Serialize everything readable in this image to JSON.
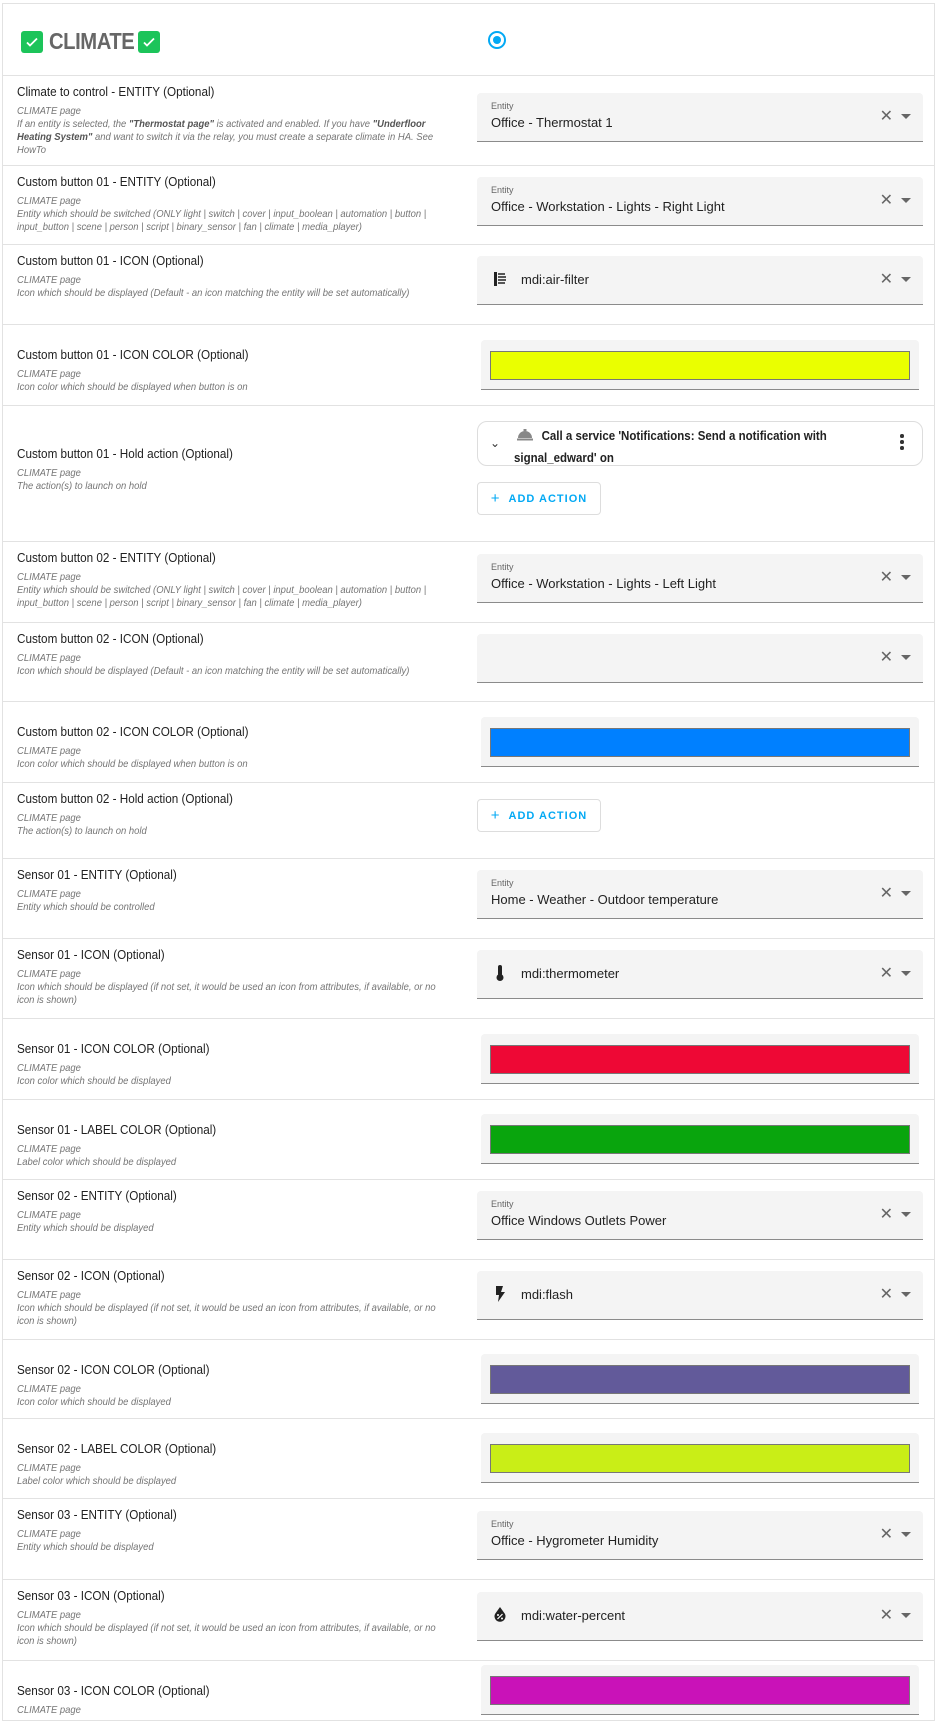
{
  "header": {
    "title": "CLIMATE",
    "checkbox_color": "#1cc45a",
    "radio_selected": true
  },
  "rows": [
    {
      "type": "entity",
      "title": "Climate to control - ENTITY (Optional)",
      "page": "CLIMATE page",
      "desc_html": "If an entity is selected, the <b>\"Thermostat page\"</b> is activated and enabled. If you have <b>\"Underfloor Heating System\"</b> and want to switch it via the relay, you must create a separate climate in HA. See HowTo",
      "label": "Entity",
      "value": "Office - Thermostat 1"
    },
    {
      "type": "entity",
      "title": "Custom button 01 - ENTITY (Optional)",
      "page": "CLIMATE page",
      "desc": "Entity which should be switched (ONLY light | switch | cover | input_boolean | automation | button | input_button | scene | person | script | binary_sensor | fan | climate | media_player)",
      "label": "Entity",
      "value": "Office - Workstation - Lights - Right Light"
    },
    {
      "type": "icon",
      "title": "Custom button 01 - ICON (Optional)",
      "page": "CLIMATE page",
      "desc": "Icon which should be displayed (Default - an icon matching the entity will be set automatically)",
      "value": "mdi:air-filter",
      "icon": "air-filter"
    },
    {
      "type": "color",
      "title": "Custom button 01 - ICON COLOR (Optional)",
      "page": "CLIMATE page",
      "desc": "Icon color which should be displayed when button is on",
      "color": "#eaff00"
    },
    {
      "type": "action",
      "title": "Custom button 01 - Hold action (Optional)",
      "page": "CLIMATE page",
      "desc": "The action(s) to launch on hold",
      "action_text": "Call a service 'Notifications: Send a notification with signal_edward' on",
      "add_label": "ADD ACTION"
    },
    {
      "type": "entity",
      "title": "Custom button 02 - ENTITY (Optional)",
      "page": "CLIMATE page",
      "desc": "Entity which should be switched (ONLY light | switch | cover | input_boolean | automation | button | input_button | scene | person | script | binary_sensor | fan | climate | media_player)",
      "label": "Entity",
      "value": "Office - Workstation - Lights - Left Light"
    },
    {
      "type": "icon",
      "title": "Custom button 02 - ICON (Optional)",
      "page": "CLIMATE page",
      "desc": "Icon which should be displayed (Default - an icon matching the entity will be set automatically)",
      "value": "",
      "icon": ""
    },
    {
      "type": "color",
      "title": "Custom button 02 - ICON COLOR (Optional)",
      "page": "CLIMATE page",
      "desc": "Icon color which should be displayed when button is on",
      "color": "#0080ff"
    },
    {
      "type": "addonly",
      "title": "Custom button 02 - Hold action (Optional)",
      "page": "CLIMATE page",
      "desc": "The action(s) to launch on hold",
      "add_label": "ADD ACTION"
    },
    {
      "type": "entity",
      "title": "Sensor 01 - ENTITY (Optional)",
      "page": "CLIMATE page",
      "desc": "Entity which should be controlled",
      "label": "Entity",
      "value": "Home - Weather - Outdoor temperature"
    },
    {
      "type": "icon",
      "title": "Sensor 01 - ICON (Optional)",
      "page": "CLIMATE page",
      "desc": "Icon which should be displayed (if not set, it would be used an icon from attributes, if available, or no icon is shown)",
      "value": "mdi:thermometer",
      "icon": "thermometer"
    },
    {
      "type": "color",
      "title": "Sensor 01 - ICON COLOR (Optional)",
      "page": "CLIMATE page",
      "desc": "Icon color which should be displayed",
      "color": "#ee0835"
    },
    {
      "type": "color",
      "title": "Sensor 01 - LABEL COLOR (Optional)",
      "page": "CLIMATE page",
      "desc": "Label color which should be displayed",
      "color": "#09a50d"
    },
    {
      "type": "entity",
      "title": "Sensor 02 - ENTITY (Optional)",
      "page": "CLIMATE page",
      "desc": "Entity which should be displayed",
      "label": "Entity",
      "value": "Office Windows Outlets Power"
    },
    {
      "type": "icon",
      "title": "Sensor 02 - ICON (Optional)",
      "page": "CLIMATE page",
      "desc": "Icon which should be displayed (if not set, it would be used an icon from attributes, if available, or no icon is shown)",
      "value": "mdi:flash",
      "icon": "flash"
    },
    {
      "type": "color",
      "title": "Sensor 02 - ICON COLOR (Optional)",
      "page": "CLIMATE page",
      "desc": "Icon color which should be displayed",
      "color": "#625a9a"
    },
    {
      "type": "color",
      "title": "Sensor 02 - LABEL COLOR (Optional)",
      "page": "CLIMATE page",
      "desc": "Label color which should be displayed",
      "color": "#c9ee17"
    },
    {
      "type": "entity",
      "title": "Sensor 03 - ENTITY (Optional)",
      "page": "CLIMATE page",
      "desc": "Entity which should be displayed",
      "label": "Entity",
      "value": "Office - Hygrometer Humidity"
    },
    {
      "type": "icon",
      "title": "Sensor 03 - ICON (Optional)",
      "page": "CLIMATE page",
      "desc": "Icon which should be displayed (if not set, it would be used an icon from attributes, if available, or no icon is shown)",
      "value": "mdi:water-percent",
      "icon": "water-percent"
    },
    {
      "type": "color",
      "title": "Sensor 03 - ICON COLOR (Optional)",
      "page": "CLIMATE page",
      "desc": "",
      "color": "#c912b8"
    }
  ]
}
